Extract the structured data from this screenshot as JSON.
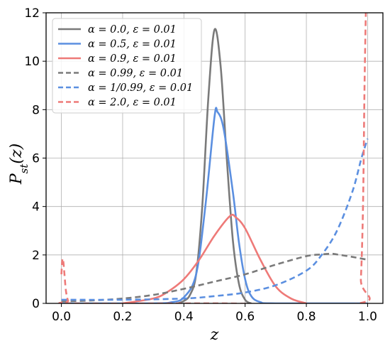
{
  "chart_data": {
    "type": "line",
    "xlabel": "z",
    "ylabel_base": "P",
    "ylabel_sub": "st",
    "ylabel_tail": "(z)",
    "xlim": [
      -0.05,
      1.05
    ],
    "ylim": [
      0,
      12
    ],
    "xticks": [
      0.0,
      0.2,
      0.4,
      0.6,
      0.8,
      1.0
    ],
    "xtick_labels": [
      "0.0",
      "0.2",
      "0.4",
      "0.6",
      "0.8",
      "1.0"
    ],
    "yticks": [
      0,
      2,
      4,
      6,
      8,
      10,
      12
    ],
    "ytick_labels": [
      "0",
      "2",
      "4",
      "6",
      "8",
      "10",
      "12"
    ],
    "grid": true,
    "legend_position": "top-left",
    "series": [
      {
        "name": "α = 0.0, ε = 0.01",
        "color": "#7a7a7a",
        "dash": "solid",
        "x": [
          0.38,
          0.4,
          0.42,
          0.44,
          0.46,
          0.48,
          0.5,
          0.52,
          0.54,
          0.56,
          0.58,
          0.6,
          0.62
        ],
        "y": [
          0.0,
          0.1,
          0.35,
          1.2,
          4.0,
          8.5,
          11.3,
          9.8,
          6.0,
          2.6,
          0.8,
          0.15,
          0.0
        ]
      },
      {
        "name": "α = 0.5, ε = 0.01",
        "color": "#5b8fe0",
        "dash": "solid",
        "x": [
          0.0,
          0.3,
          0.36,
          0.4,
          0.44,
          0.47,
          0.5,
          0.51,
          0.53,
          0.56,
          0.58,
          0.6,
          0.62,
          0.65,
          0.7,
          1.0
        ],
        "y": [
          0.0,
          0.0,
          0.05,
          0.25,
          1.2,
          4.0,
          7.7,
          7.9,
          7.2,
          4.6,
          2.5,
          1.0,
          0.3,
          0.05,
          0.0,
          0.0
        ]
      },
      {
        "name": "α = 0.9, ε = 0.01",
        "color": "#ee7a78",
        "dash": "solid",
        "x": [
          0.2,
          0.3,
          0.35,
          0.4,
          0.45,
          0.5,
          0.55,
          0.57,
          0.6,
          0.65,
          0.7,
          0.75,
          0.8
        ],
        "y": [
          0.0,
          0.2,
          0.5,
          1.0,
          1.8,
          2.8,
          3.6,
          3.55,
          3.1,
          1.8,
          0.7,
          0.2,
          0.0
        ]
      },
      {
        "name": "α = 0.99, ε = 0.01",
        "color": "#7a7a7a",
        "dash": "dashed",
        "x": [
          0.0,
          0.1,
          0.2,
          0.3,
          0.4,
          0.5,
          0.6,
          0.7,
          0.8,
          0.85,
          0.88,
          0.9,
          0.95,
          1.0
        ],
        "y": [
          0.08,
          0.12,
          0.2,
          0.35,
          0.6,
          0.9,
          1.2,
          1.6,
          1.95,
          2.02,
          2.05,
          2.02,
          1.92,
          1.8
        ]
      },
      {
        "name": "α = 1/0.99, ε = 0.01",
        "color": "#5b8fe0",
        "dash": "dashed",
        "x": [
          0.0,
          0.2,
          0.4,
          0.5,
          0.6,
          0.7,
          0.8,
          0.85,
          0.9,
          0.95,
          0.98,
          1.0
        ],
        "y": [
          0.15,
          0.15,
          0.2,
          0.3,
          0.45,
          0.75,
          1.35,
          2.0,
          3.0,
          4.6,
          6.0,
          6.8
        ]
      },
      {
        "name": "α = 2.0, ε = 0.01",
        "color": "#ee7a78",
        "dash": "dashed",
        "x": [
          0.0,
          0.003,
          0.006,
          0.01,
          0.015,
          0.022,
          0.03,
          0.5,
          0.97,
          0.978,
          0.985,
          0.99,
          0.995
        ],
        "y": [
          1.2,
          1.8,
          1.75,
          1.2,
          0.5,
          0.1,
          0.0,
          0.0,
          0.0,
          1.0,
          4.0,
          9.0,
          12.5
        ]
      }
    ]
  }
}
